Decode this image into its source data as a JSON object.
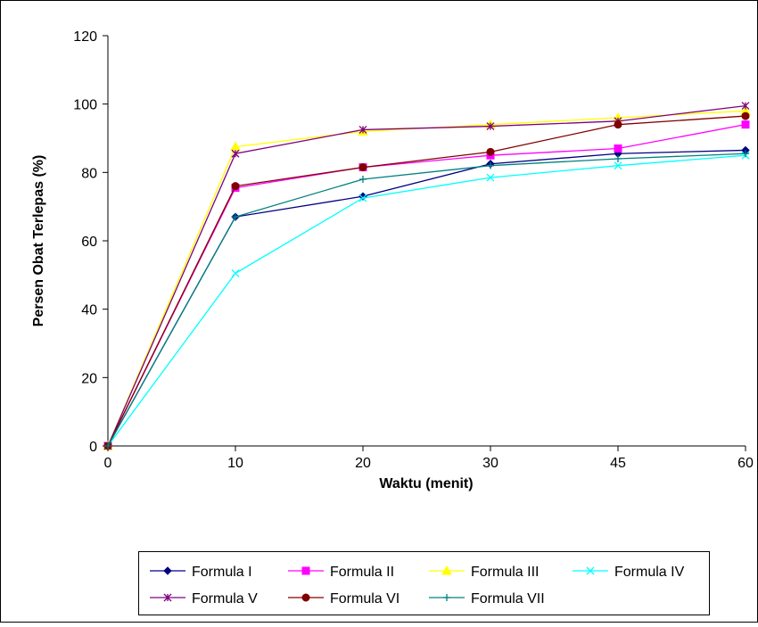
{
  "chart_data": {
    "type": "line",
    "title": "",
    "xlabel": "Waktu (menit)",
    "ylabel": "Persen Obat Terlepas (%)",
    "categories": [
      "0",
      "10",
      "20",
      "30",
      "45",
      "60"
    ],
    "ylim": [
      0,
      120
    ],
    "yticks": [
      "0",
      "20",
      "40",
      "60",
      "80",
      "100",
      "120"
    ],
    "grid": false,
    "legend_position": "bottom",
    "series": [
      {
        "name": "Formula I",
        "color": "#000080",
        "marker": "diamond",
        "values": [
          0,
          67,
          73,
          82.5,
          85.5,
          86.5
        ]
      },
      {
        "name": "Formula II",
        "color": "#ff00ff",
        "marker": "square",
        "values": [
          0,
          75.5,
          81.5,
          85,
          87,
          94
        ]
      },
      {
        "name": "Formula III",
        "color": "#ffff00",
        "marker": "triangle",
        "values": [
          0,
          87.5,
          92,
          94,
          96,
          98
        ]
      },
      {
        "name": "Formula IV",
        "color": "#00ffff",
        "marker": "x",
        "values": [
          0,
          50.5,
          72.5,
          78.5,
          82,
          85
        ]
      },
      {
        "name": "Formula V",
        "color": "#800080",
        "marker": "star",
        "values": [
          0,
          85.5,
          92.5,
          93.5,
          95,
          99.5
        ]
      },
      {
        "name": "Formula VI",
        "color": "#800000",
        "marker": "circle",
        "values": [
          0,
          76,
          81.5,
          86,
          94,
          96.5
        ]
      },
      {
        "name": "Formula VII",
        "color": "#008080",
        "marker": "plus",
        "values": [
          0,
          67,
          78,
          82,
          84,
          85.5
        ]
      }
    ]
  }
}
